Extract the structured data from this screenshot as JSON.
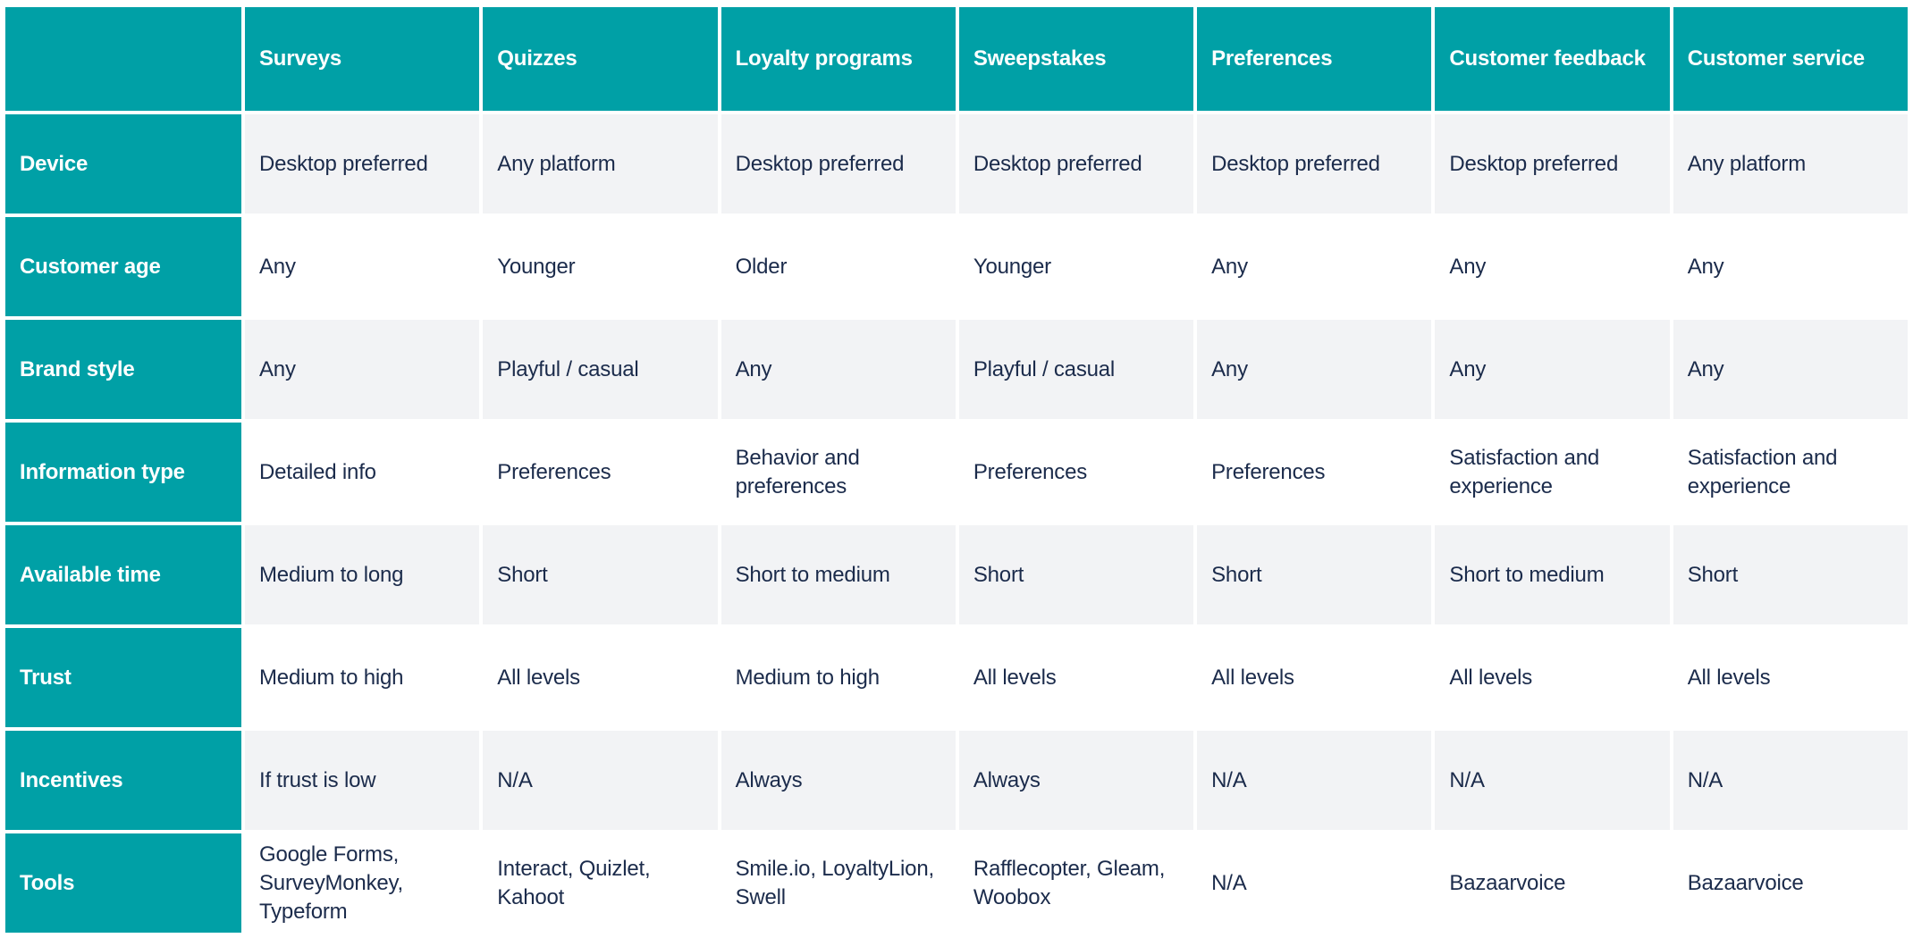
{
  "colors": {
    "teal": "#00A0A6",
    "alt_row_bg": "#F2F3F5",
    "body_text": "#1B2B4B",
    "header_text": "#FFFFFF"
  },
  "table": {
    "corner": "",
    "columns": [
      "Surveys",
      "Quizzes",
      "Loyalty programs",
      "Sweepstakes",
      "Preferences",
      "Customer feedback",
      "Customer service"
    ],
    "rows": [
      {
        "label": "Device",
        "cells": [
          "Desktop preferred",
          "Any platform",
          "Desktop preferred",
          "Desktop preferred",
          "Desktop preferred",
          "Desktop preferred",
          "Any platform"
        ]
      },
      {
        "label": "Customer age",
        "cells": [
          "Any",
          "Younger",
          "Older",
          "Younger",
          "Any",
          "Any",
          "Any"
        ]
      },
      {
        "label": "Brand style",
        "cells": [
          "Any",
          "Playful / casual",
          "Any",
          "Playful / casual",
          "Any",
          "Any",
          "Any"
        ]
      },
      {
        "label": "Information type",
        "cells": [
          "Detailed info",
          "Preferences",
          "Behavior and preferences",
          "Preferences",
          "Preferences",
          "Satisfaction and experience",
          "Satisfaction and experience"
        ]
      },
      {
        "label": "Available time",
        "cells": [
          "Medium to long",
          "Short",
          "Short to medium",
          "Short",
          "Short",
          "Short to medium",
          "Short"
        ]
      },
      {
        "label": "Trust",
        "cells": [
          "Medium to high",
          "All levels",
          "Medium to high",
          "All levels",
          "All levels",
          "All levels",
          "All levels"
        ]
      },
      {
        "label": "Incentives",
        "cells": [
          "If trust is low",
          "N/A",
          "Always",
          "Always",
          "N/A",
          "N/A",
          "N/A"
        ]
      },
      {
        "label": "Tools",
        "cells": [
          "Google Forms, SurveyMonkey, Typeform",
          "Interact, Quizlet, Kahoot",
          "Smile.io, LoyaltyLion, Swell",
          "Rafflecopter, Gleam, Woobox",
          "N/A",
          "Bazaarvoice",
          "Bazaarvoice"
        ]
      }
    ]
  }
}
